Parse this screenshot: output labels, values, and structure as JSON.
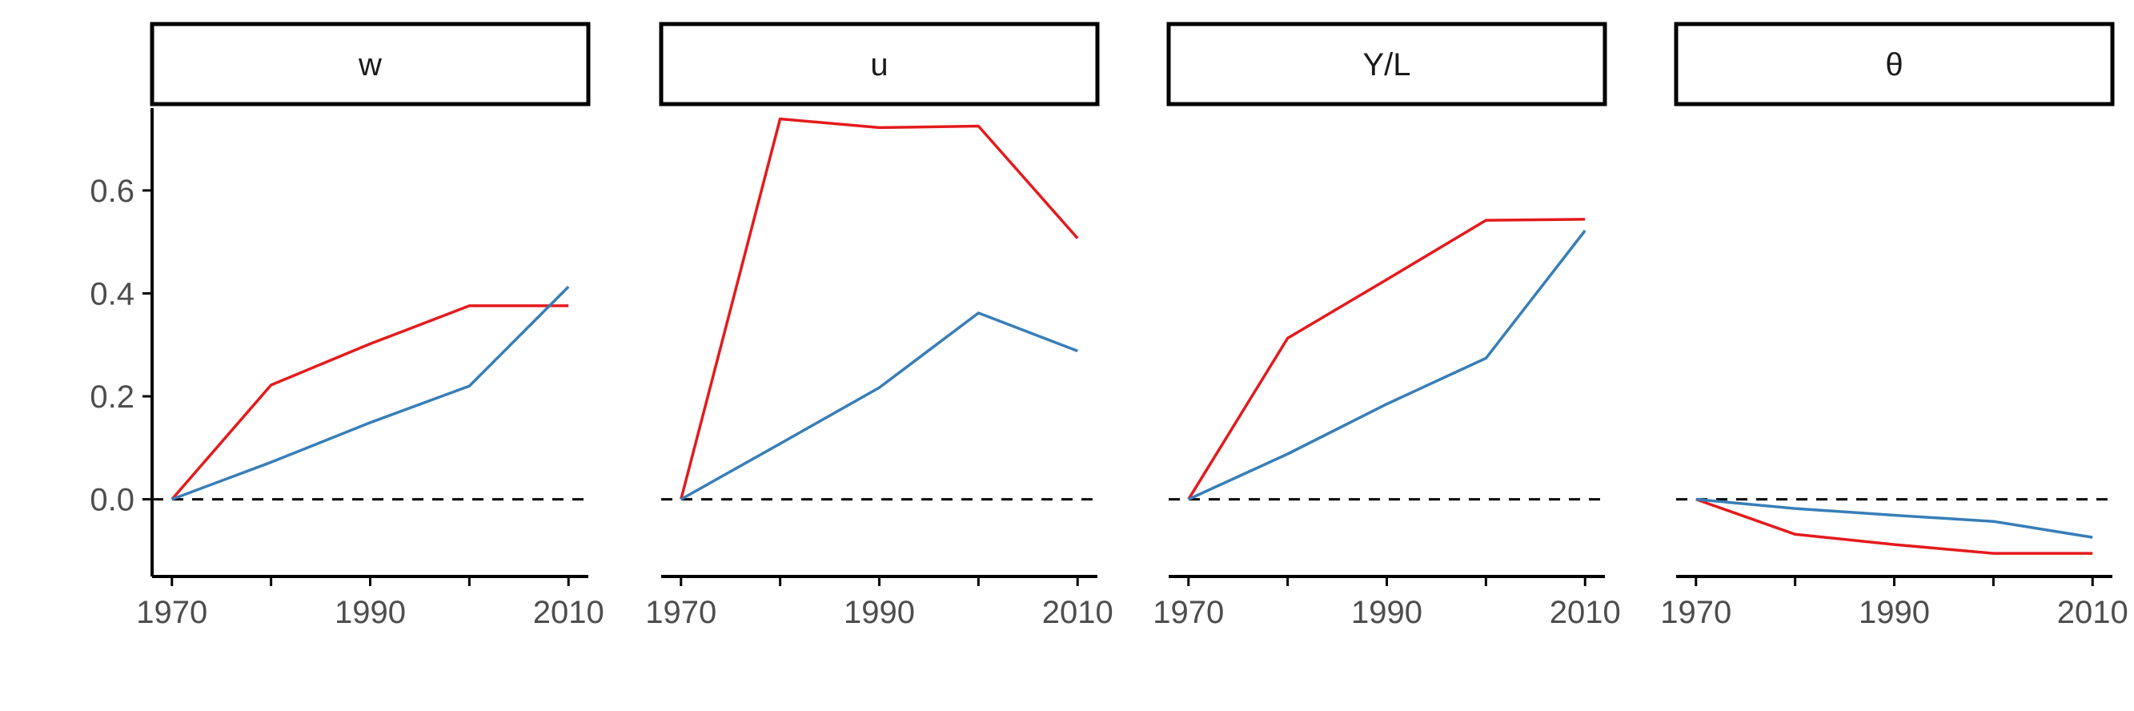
{
  "chart_data": {
    "type": "line",
    "facets": [
      {
        "label": "w",
        "x": [
          1970,
          1980,
          1990,
          2000,
          2010
        ],
        "series": [
          {
            "color": "#E41A1C",
            "values": [
              0.0,
              0.222,
              0.302,
              0.376,
              0.376
            ]
          },
          {
            "color": "#377EB8",
            "values": [
              0.0,
              0.072,
              0.149,
              0.22,
              0.413
            ]
          }
        ]
      },
      {
        "label": "u",
        "x": [
          1970,
          1980,
          1990,
          2000,
          2010
        ],
        "series": [
          {
            "color": "#E41A1C",
            "values": [
              0.0,
              0.739,
              0.722,
              0.725,
              0.507
            ]
          },
          {
            "color": "#377EB8",
            "values": [
              0.0,
              0.108,
              0.217,
              0.362,
              0.288
            ]
          }
        ]
      },
      {
        "label": "Y/L",
        "x": [
          1970,
          1980,
          1990,
          2000,
          2010
        ],
        "series": [
          {
            "color": "#E41A1C",
            "values": [
              0.0,
              0.313,
              0.427,
              0.542,
              0.544
            ]
          },
          {
            "color": "#377EB8",
            "values": [
              0.0,
              0.088,
              0.185,
              0.274,
              0.522
            ]
          }
        ]
      },
      {
        "label": "θ",
        "x": [
          1970,
          1980,
          1990,
          2000,
          2010
        ],
        "series": [
          {
            "color": "#E41A1C",
            "values": [
              0.0,
              -0.068,
              -0.088,
              -0.105,
              -0.105
            ]
          },
          {
            "color": "#377EB8",
            "values": [
              0.0,
              -0.018,
              -0.031,
              -0.043,
              -0.074
            ]
          }
        ]
      }
    ],
    "xlim": [
      1968,
      2012
    ],
    "ylim": [
      -0.15,
      0.76
    ],
    "x_ticks": [
      1970,
      1980,
      1990,
      2000,
      2010
    ],
    "x_tick_labels": [
      "1970",
      "",
      "1990",
      "",
      "2010"
    ],
    "y_ticks": [
      0.0,
      0.2,
      0.4,
      0.6
    ],
    "y_tick_labels": [
      "0.0",
      "0.2",
      "0.4",
      "0.6"
    ],
    "reference_line_y": 0,
    "shared_y_axis": true,
    "grid": false,
    "legend": "none"
  }
}
